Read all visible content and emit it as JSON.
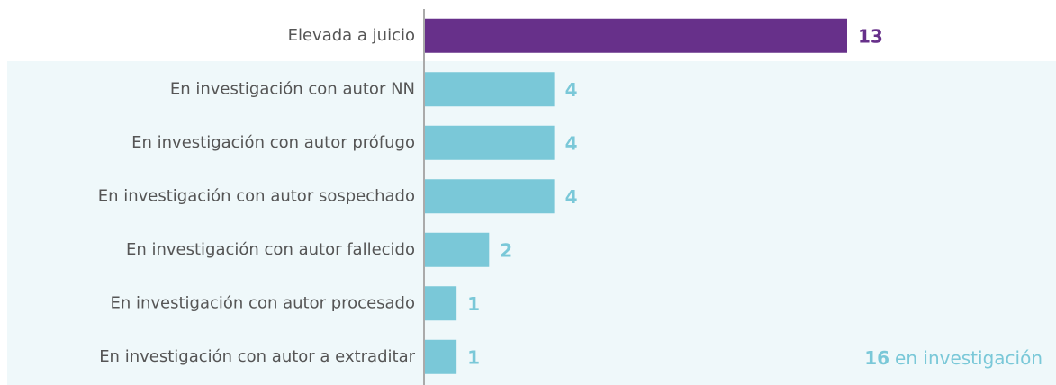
{
  "chart_data": {
    "type": "barh",
    "categories": [
      "Elevada a juicio",
      "En investigación con autor NN",
      "En investigación con autor prófugo",
      "En investigación con autor sospechado",
      "En investigación con autor fallecido",
      "En investigación con autor procesado",
      "En investigación con autor a extraditar"
    ],
    "values": [
      13,
      4,
      4,
      4,
      2,
      1,
      1
    ],
    "colors": [
      "#67308a",
      "#7ac8d8",
      "#7ac8d8",
      "#7ac8d8",
      "#7ac8d8",
      "#7ac8d8",
      "#7ac8d8"
    ],
    "xlim": [
      0,
      13
    ],
    "annotation_value": 16,
    "annotation_text": "en investigación"
  }
}
